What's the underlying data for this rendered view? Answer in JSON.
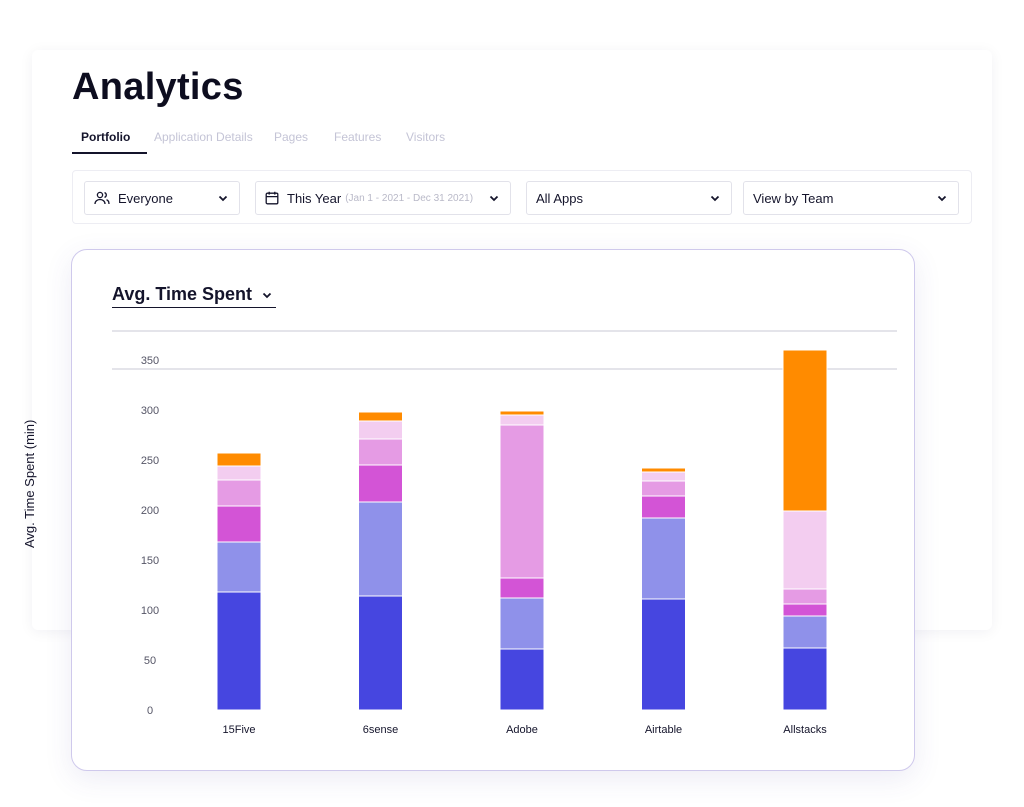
{
  "page": {
    "title": "Analytics"
  },
  "tabs": [
    {
      "label": "Portfolio",
      "active": true
    },
    {
      "label": "Application Details",
      "active": false
    },
    {
      "label": "Pages",
      "active": false
    },
    {
      "label": "Features",
      "active": false
    },
    {
      "label": "Visitors",
      "active": false
    }
  ],
  "filters": {
    "audience": {
      "label": "Everyone",
      "icon": "users-icon"
    },
    "date": {
      "label": "This Year",
      "range": "(Jan 1 - 2021 - Dec 31 2021)",
      "icon": "calendar-icon"
    },
    "apps": {
      "label": "All Apps"
    },
    "view": {
      "label": "View by Team"
    }
  },
  "chart_panel": {
    "metric_label": "Avg. Time Spent"
  },
  "colors": {
    "seg1": "#4646e0",
    "seg2": "#8f91ea",
    "seg3": "#d354d6",
    "seg4": "#e59be4",
    "seg5": "#f3cdf0",
    "seg6": "#ff8b00",
    "border": "#cfc9ec",
    "grid": "#c8c8d4",
    "axis_text": "#555566"
  },
  "chart_data": {
    "type": "bar",
    "stacked": true,
    "categories": [
      "15Five",
      "6sense",
      "Adobe",
      "Airtable",
      "Allstacks"
    ],
    "series": [
      {
        "values": [
          118,
          114,
          61,
          111,
          62
        ]
      },
      {
        "values": [
          50,
          94,
          51,
          81,
          32
        ]
      },
      {
        "values": [
          36,
          37,
          20,
          22,
          12
        ]
      },
      {
        "values": [
          26,
          26,
          153,
          15,
          15
        ]
      },
      {
        "values": [
          14,
          18,
          10,
          9,
          78
        ]
      },
      {
        "values": [
          13,
          9,
          4,
          4,
          161
        ]
      }
    ],
    "ylabel": "Avg. Time Spent (min)",
    "xlabel": "",
    "ylim": [
      0,
      350
    ],
    "yticks": [
      0,
      50,
      100,
      150,
      200,
      250,
      300,
      350
    ],
    "grid": false
  }
}
